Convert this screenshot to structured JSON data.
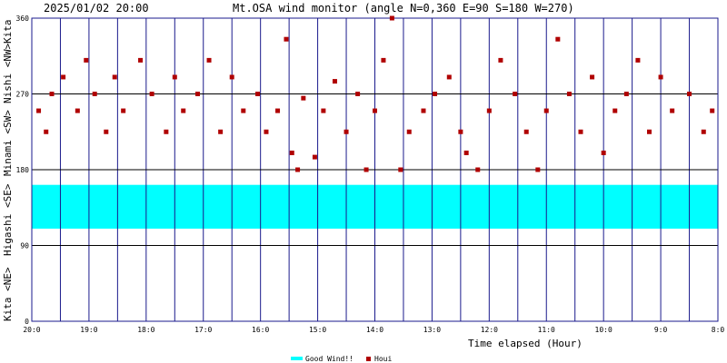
{
  "header": {
    "timestamp": "2025/01/02 20:00",
    "title": "Mt.OSA wind monitor (angle N=0,360 E=90 S=180 W=270)"
  },
  "y_side_labels": [
    "Kita <NE>",
    "Higashi <SE>",
    "Minami <SW>",
    "Nishi <NW>",
    "Kita"
  ],
  "legend": {
    "good_wind": "Good Wind!!",
    "houi": "Houi"
  },
  "colors": {
    "frame": "#1a1a8c",
    "good_wind": "#00ffff",
    "houi": "#b00000",
    "text": "#000000"
  },
  "chart_data": {
    "type": "scatter",
    "title": "Mt.OSA wind monitor (angle N=0,360 E=90 S=180 W=270)",
    "xlabel": "Time elapsed (Hour)",
    "ylabel": "",
    "x_tick_labels": [
      "20:0",
      "19:0",
      "18:0",
      "17:0",
      "16:0",
      "15:0",
      "14:0",
      "13:0",
      "12:0",
      "11:0",
      "10:0",
      "9:0",
      "8:0"
    ],
    "x_range_hours_elapsed": [
      0,
      12
    ],
    "y_ticks": [
      0,
      90,
      180,
      270,
      360
    ],
    "ylim": [
      0,
      360
    ],
    "grid": true,
    "legend_position": "bottom",
    "good_wind_band": [
      110,
      162
    ],
    "series": [
      {
        "name": "Houi",
        "x": [
          0.12,
          0.25,
          0.35,
          0.55,
          0.8,
          0.95,
          1.1,
          1.3,
          1.45,
          1.6,
          1.9,
          2.1,
          2.35,
          2.5,
          2.65,
          2.9,
          3.1,
          3.3,
          3.5,
          3.7,
          3.95,
          4.1,
          4.3,
          4.45,
          4.55,
          4.65,
          4.75,
          4.95,
          5.1,
          5.3,
          5.5,
          5.7,
          5.85,
          6.0,
          6.15,
          6.3,
          6.45,
          6.6,
          6.85,
          7.05,
          7.3,
          7.5,
          7.6,
          7.8,
          8.0,
          8.2,
          8.45,
          8.65,
          8.85,
          9.0,
          9.2,
          9.4,
          9.6,
          9.8,
          10.0,
          10.2,
          10.4,
          10.6,
          10.8,
          11.0,
          11.2,
          11.5,
          11.75,
          11.9
        ],
        "y": [
          250,
          225,
          270,
          290,
          250,
          310,
          270,
          225,
          290,
          250,
          310,
          270,
          225,
          290,
          250,
          270,
          310,
          225,
          290,
          250,
          270,
          225,
          250,
          335,
          200,
          180,
          265,
          195,
          250,
          285,
          225,
          270,
          180,
          250,
          310,
          360,
          180,
          225,
          250,
          270,
          290,
          225,
          200,
          180,
          250,
          310,
          270,
          225,
          180,
          250,
          335,
          270,
          225,
          290,
          200,
          250,
          270,
          310,
          225,
          290,
          250,
          270,
          225,
          250
        ]
      }
    ]
  }
}
